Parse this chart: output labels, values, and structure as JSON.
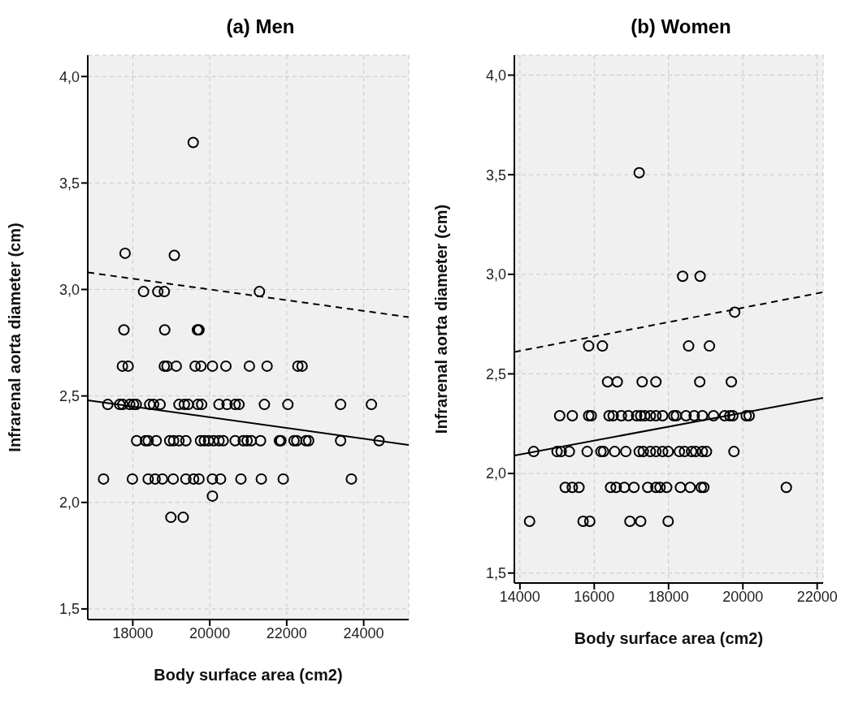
{
  "chart_data": [
    {
      "type": "scatter",
      "title": "(a) Men",
      "xlabel": "Body surface area (cm2)",
      "ylabel": "Infrarenal aorta diameter (cm)",
      "grid": true,
      "xlim": [
        16830,
        25170
      ],
      "xticks": [
        18000,
        20000,
        22000,
        24000
      ],
      "ylim": [
        1.45,
        4.1
      ],
      "yticks": [
        {
          "value": 1.5,
          "label": "1,5"
        },
        {
          "value": 2.0,
          "label": "2,0"
        },
        {
          "value": 2.5,
          "label": "2,5"
        },
        {
          "value": 3.0,
          "label": "3,0"
        },
        {
          "value": 3.5,
          "label": "3,5"
        },
        {
          "value": 4.0,
          "label": "4,0"
        }
      ],
      "series": [
        {
          "color": "#000000",
          "marker": "circle",
          "x": [
            19570,
            17800,
            19080,
            21290,
            18280,
            18650,
            18820,
            17770,
            18830,
            19680,
            19720,
            17730,
            17880,
            18820,
            18890,
            19130,
            19620,
            19770,
            20070,
            20420,
            21030,
            21490,
            22290,
            22400,
            17350,
            17660,
            17740,
            17920,
            18020,
            18090,
            18440,
            18540,
            18710,
            19200,
            19340,
            19440,
            19690,
            19790,
            20240,
            20450,
            20660,
            20760,
            21420,
            22030,
            23400,
            24200,
            18100,
            18330,
            18400,
            18610,
            18960,
            19060,
            19200,
            19380,
            19760,
            19860,
            19970,
            20100,
            20240,
            20350,
            20660,
            20870,
            20970,
            21080,
            21320,
            21810,
            21850,
            22190,
            22260,
            22500,
            22570,
            23400,
            24400,
            17240,
            17990,
            18400,
            18580,
            18770,
            19050,
            19380,
            19580,
            19720,
            20070,
            20280,
            20810,
            21340,
            21910,
            23680,
            20070,
            18990,
            19310
          ],
          "values": [
            3.69,
            3.17,
            3.16,
            2.99,
            2.99,
            2.99,
            2.99,
            2.81,
            2.81,
            2.81,
            2.81,
            2.64,
            2.64,
            2.64,
            2.64,
            2.64,
            2.64,
            2.64,
            2.64,
            2.64,
            2.64,
            2.64,
            2.64,
            2.64,
            2.46,
            2.46,
            2.46,
            2.46,
            2.46,
            2.46,
            2.46,
            2.46,
            2.46,
            2.46,
            2.46,
            2.46,
            2.46,
            2.46,
            2.46,
            2.46,
            2.46,
            2.46,
            2.46,
            2.46,
            2.46,
            2.46,
            2.29,
            2.29,
            2.29,
            2.29,
            2.29,
            2.29,
            2.29,
            2.29,
            2.29,
            2.29,
            2.29,
            2.29,
            2.29,
            2.29,
            2.29,
            2.29,
            2.29,
            2.29,
            2.29,
            2.29,
            2.29,
            2.29,
            2.29,
            2.29,
            2.29,
            2.29,
            2.29,
            2.11,
            2.11,
            2.11,
            2.11,
            2.11,
            2.11,
            2.11,
            2.11,
            2.11,
            2.11,
            2.11,
            2.11,
            2.11,
            2.11,
            2.11,
            2.03,
            1.93,
            1.93
          ]
        },
        {
          "type": "line",
          "color": "#000000",
          "line_style": "solid",
          "x": [
            16830,
            25170
          ],
          "values": [
            2.48,
            2.27
          ]
        },
        {
          "type": "line",
          "color": "#000000",
          "line_style": "dashed",
          "x": [
            16830,
            25170
          ],
          "values": [
            3.08,
            2.87
          ]
        }
      ]
    },
    {
      "type": "scatter",
      "title": "(b) Women",
      "xlabel": "Body surface area (cm2)",
      "ylabel": "Infrarenal aorta diameter (cm)",
      "grid": true,
      "xlim": [
        13850,
        22160
      ],
      "xticks": [
        14000,
        16000,
        18000,
        20000,
        22000
      ],
      "ylim": [
        1.45,
        4.1
      ],
      "yticks": [
        {
          "value": 1.5,
          "label": "1,5"
        },
        {
          "value": 2.0,
          "label": "2,0"
        },
        {
          "value": 2.5,
          "label": "2,5"
        },
        {
          "value": 3.0,
          "label": "3,0"
        },
        {
          "value": 3.5,
          "label": "3,5"
        },
        {
          "value": 4.0,
          "label": "4,0"
        }
      ],
      "series": [
        {
          "color": "#000000",
          "marker": "circle",
          "x": [
            17210,
            18380,
            18850,
            19780,
            15850,
            16220,
            18540,
            19100,
            16360,
            16620,
            17290,
            17660,
            18840,
            19690,
            15070,
            15410,
            15850,
            15920,
            16400,
            16510,
            16730,
            16920,
            17140,
            17250,
            17360,
            17510,
            17660,
            17840,
            18140,
            18210,
            18470,
            18690,
            18910,
            19210,
            19510,
            19650,
            19730,
            20090,
            20170,
            14370,
            15000,
            15110,
            15330,
            15810,
            16180,
            16250,
            16550,
            16850,
            17210,
            17320,
            17510,
            17660,
            17840,
            17990,
            18290,
            18430,
            18620,
            18730,
            18910,
            19020,
            19760,
            15220,
            15410,
            15590,
            16440,
            16590,
            16810,
            17070,
            17440,
            17660,
            17770,
            17950,
            18320,
            18580,
            18880,
            18950,
            21170,
            14260,
            15700,
            15880,
            16960,
            17250,
            17990
          ],
          "values": [
            3.51,
            2.99,
            2.99,
            2.81,
            2.64,
            2.64,
            2.64,
            2.64,
            2.46,
            2.46,
            2.46,
            2.46,
            2.46,
            2.46,
            2.29,
            2.29,
            2.29,
            2.29,
            2.29,
            2.29,
            2.29,
            2.29,
            2.29,
            2.29,
            2.29,
            2.29,
            2.29,
            2.29,
            2.29,
            2.29,
            2.29,
            2.29,
            2.29,
            2.29,
            2.29,
            2.29,
            2.29,
            2.29,
            2.29,
            2.11,
            2.11,
            2.11,
            2.11,
            2.11,
            2.11,
            2.11,
            2.11,
            2.11,
            2.11,
            2.11,
            2.11,
            2.11,
            2.11,
            2.11,
            2.11,
            2.11,
            2.11,
            2.11,
            2.11,
            2.11,
            2.11,
            1.93,
            1.93,
            1.93,
            1.93,
            1.93,
            1.93,
            1.93,
            1.93,
            1.93,
            1.93,
            1.93,
            1.93,
            1.93,
            1.93,
            1.93,
            1.93,
            1.76,
            1.76,
            1.76,
            1.76,
            1.76,
            1.76
          ]
        },
        {
          "type": "line",
          "color": "#000000",
          "line_style": "solid",
          "x": [
            13850,
            22160
          ],
          "values": [
            2.09,
            2.38
          ]
        },
        {
          "type": "line",
          "color": "#000000",
          "line_style": "dashed",
          "x": [
            13850,
            22160
          ],
          "values": [
            2.61,
            2.91
          ]
        }
      ]
    }
  ]
}
